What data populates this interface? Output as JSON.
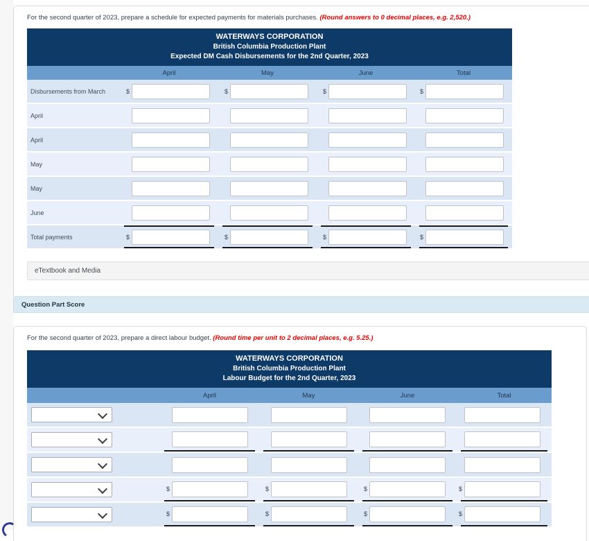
{
  "part1": {
    "instruction": {
      "text": "For the second quarter of 2023, prepare a schedule for expected payments for materials purchases.",
      "note": "(Round answers to 0 decimal places, e.g. 2,520.)"
    },
    "table": {
      "title_lines": [
        "WATERWAYS CORPORATION",
        "British Columbia Production Plant",
        "Expected DM Cash Disbursements for the 2nd Quarter, 2023"
      ],
      "columns": [
        "April",
        "May",
        "June",
        "Total"
      ],
      "currency_symbol": "$",
      "rows": [
        {
          "label": "Disbursements from March",
          "dollar": true,
          "rule_top": false,
          "rule_bottom": false
        },
        {
          "label": "April",
          "dollar": false,
          "rule_top": false,
          "rule_bottom": false
        },
        {
          "label": "April",
          "dollar": false,
          "rule_top": false,
          "rule_bottom": false
        },
        {
          "label": "May",
          "dollar": false,
          "rule_top": false,
          "rule_bottom": false
        },
        {
          "label": "May",
          "dollar": false,
          "rule_top": false,
          "rule_bottom": false
        },
        {
          "label": "June",
          "dollar": false,
          "rule_top": false,
          "rule_bottom": false
        },
        {
          "label": "Total payments",
          "dollar": true,
          "rule_top": true,
          "rule_bottom": true
        }
      ]
    },
    "etextbook_label": "eTextbook and Media"
  },
  "score_bar": {
    "label": "Question Part Score"
  },
  "part2": {
    "instruction": {
      "text": "For the second quarter of 2023, prepare a direct labour budget.",
      "note": "(Round time per unit to 2 decimal places, e.g. 5.25.)"
    },
    "table": {
      "title_lines": [
        "WATERWAYS CORPORATION",
        "British Columbia Production Plant",
        "Labour Budget for the 2nd Quarter, 2023"
      ],
      "columns": [
        "April",
        "May",
        "June",
        "Total"
      ],
      "currency_symbol": "$",
      "rows": [
        {
          "has_select": true,
          "dollar": false,
          "rule_bottom": false
        },
        {
          "has_select": true,
          "dollar": false,
          "rule_bottom": true
        },
        {
          "has_select": true,
          "dollar": false,
          "rule_bottom": false
        },
        {
          "has_select": true,
          "dollar": true,
          "rule_bottom": true
        },
        {
          "has_select": true,
          "dollar": true,
          "rule_bottom": true
        }
      ]
    }
  },
  "colors": {
    "header_navy": "#0e3a68",
    "column_header_blue": "#6b9cce",
    "row_dark": "#dbe6f5",
    "row_light": "#eaf0fb",
    "note_red": "#e60000",
    "score_bar_blue": "#d9eaf4",
    "total_rule": "#16191d"
  }
}
